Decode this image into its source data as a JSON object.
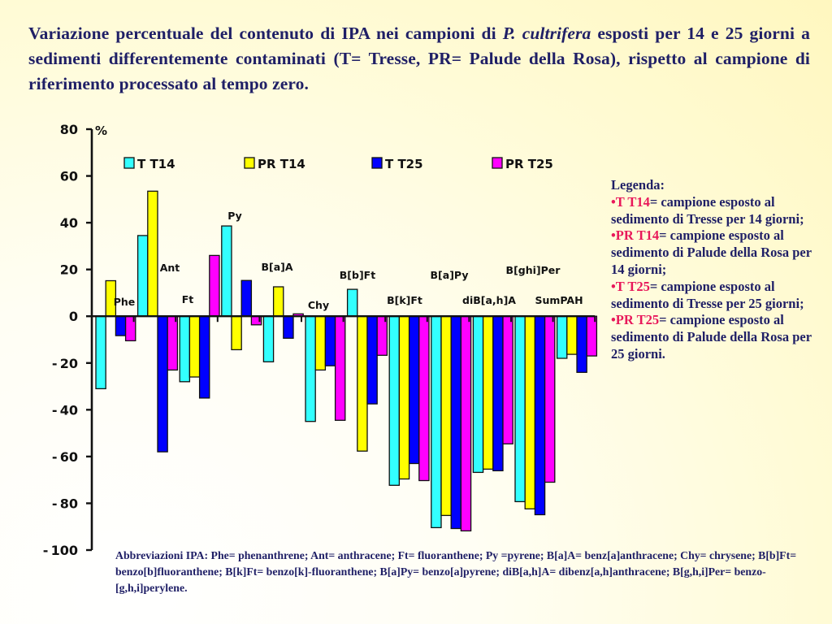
{
  "title": {
    "part1": "Variazione percentuale del contenuto di IPA nei campioni di ",
    "species": "P. cultrifera",
    "part2": " esposti per 14 e 25 giorni a sedimenti differentemente contaminati (T= Tresse, PR= Palude della Rosa), rispetto al campione di riferimento processato al tempo zero."
  },
  "legend_text": {
    "heading": "Legenda:",
    "items": [
      {
        "bullet": "•",
        "key": "T T14",
        "desc": "= campione esposto al sedimento di Tresse per 14 giorni;"
      },
      {
        "bullet": "•",
        "key": "PR T14",
        "desc": "= campione esposto al sedimento di Palude della Rosa per 14 giorni;"
      },
      {
        "bullet": "•",
        "key": "T T25",
        "desc": "= campione esposto al sedimento di Tresse per 25 giorni;"
      },
      {
        "bullet": "•",
        "key": "PR T25",
        "desc": "= campione esposto al sedimento di Palude della Rosa per 25 giorni."
      }
    ]
  },
  "abbreviations": "Abbreviazioni IPA: Phe= phenanthrene; Ant= anthracene; Ft= fluoranthene; Py =pyrene; B[a]A= benz[a]anthracene; Chy= chrysene; B[b]Ft=  benzo[b]fluoranthene; B[k]Ft= benzo[k]-fluoranthene; B[a]Py= benzo[a]pyrene; diB[a,h]A= dibenz[a,h]anthracene; B[g,h,i]Per= benzo-[g,h,i]perylene.",
  "chart_data": {
    "type": "bar",
    "title": "",
    "xlabel": "",
    "ylabel": "%",
    "ylim": [
      -100,
      80
    ],
    "yticks": [
      80,
      60,
      40,
      20,
      0,
      -20,
      -40,
      -60,
      -80,
      -100
    ],
    "grid": false,
    "legend_position": "top",
    "categories": [
      "Phe",
      "Ant",
      "Ft",
      "Py",
      "B[a]A",
      "Chy",
      "B[b]Ft",
      "B[k]Ft",
      "B[a]Py",
      "diB[a,h]A",
      "B[ghi]Per",
      "SumPAH"
    ],
    "series": [
      {
        "name": "T T14",
        "color": "#33ffff",
        "values": [
          -31,
          34.5,
          -28,
          38.6,
          -19.5,
          -45,
          11.5,
          -72.3,
          -90.4,
          -66.8,
          -79.3,
          -18
        ]
      },
      {
        "name": "PR T14",
        "color": "#ffff00",
        "values": [
          15.2,
          53.5,
          -26,
          -14.3,
          12.6,
          -23,
          -57.7,
          -69.6,
          -85.2,
          -65.4,
          -82.4,
          -16.3
        ]
      },
      {
        "name": "T T25",
        "color": "#0000ff",
        "values": [
          -8.3,
          -58,
          -35,
          15.3,
          -9.4,
          -21.2,
          -37.5,
          -63,
          -90.8,
          -66.1,
          -84.9,
          -24
        ]
      },
      {
        "name": "PR T25",
        "color": "#ff00ff",
        "values": [
          -10.5,
          -23,
          26,
          -3.7,
          1,
          -44.5,
          -16.7,
          -70.3,
          -91.8,
          -54.6,
          -71,
          -17
        ]
      }
    ]
  }
}
